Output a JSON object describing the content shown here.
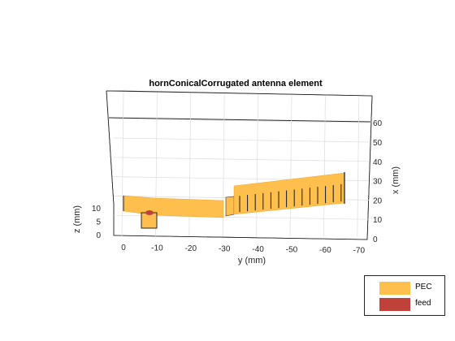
{
  "chart_data": {
    "type": "3d-structure",
    "title": "hornConicalCorrugated antenna element",
    "axes": {
      "y": {
        "label": "y (mm)",
        "ticks": [
          "0",
          "-10",
          "-20",
          "-30",
          "-40",
          "-50",
          "-60",
          "-70"
        ]
      },
      "x": {
        "label": "x (mm)",
        "ticks": [
          "0",
          "10",
          "20",
          "30",
          "40",
          "50",
          "60"
        ]
      },
      "z": {
        "label": "z (mm)",
        "ticks": [
          "0",
          "5",
          "10"
        ]
      }
    },
    "grid": true,
    "legend": {
      "placement": "bottom-right",
      "entries": [
        {
          "label": "PEC",
          "color": "#FFBF4D"
        },
        {
          "label": "feed",
          "color": "#C0403A"
        }
      ]
    },
    "series": [
      {
        "name": "PEC",
        "color": "#FFBF4D"
      },
      {
        "name": "feed",
        "color": "#C0403A"
      }
    ]
  }
}
